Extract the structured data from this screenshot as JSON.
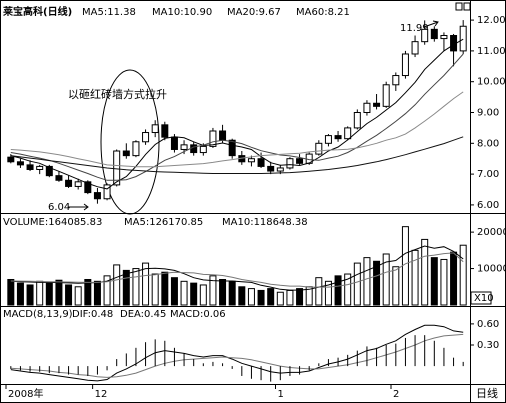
{
  "chart_data": [
    {
      "type": "candlestick",
      "title": "莱宝高科(日线)",
      "open": [
        7.55,
        7.4,
        7.3,
        7.15,
        7.25,
        6.95,
        6.8,
        6.6,
        6.75,
        6.4,
        6.2,
        6.65,
        7.75,
        7.6,
        8.05,
        8.35,
        8.6,
        8.2,
        7.8,
        7.95,
        7.7,
        7.9,
        8.4,
        8.1,
        7.6,
        7.4,
        7.5,
        7.25,
        7.1,
        7.2,
        7.5,
        7.35,
        7.65,
        8.0,
        8.25,
        8.15,
        8.5,
        9.0,
        9.3,
        9.2,
        9.9,
        10.2,
        10.9,
        11.3,
        11.7,
        11.4,
        11.5,
        11.0
      ],
      "high": [
        7.65,
        7.5,
        7.45,
        7.3,
        7.3,
        7.1,
        6.95,
        6.85,
        6.8,
        6.55,
        6.7,
        7.8,
        8.0,
        8.1,
        8.45,
        8.75,
        8.7,
        8.3,
        8.1,
        8.05,
        8.0,
        8.5,
        8.6,
        8.15,
        7.75,
        7.6,
        7.7,
        7.4,
        7.3,
        7.55,
        7.65,
        7.7,
        8.1,
        8.3,
        8.4,
        8.55,
        9.1,
        9.4,
        9.6,
        10.0,
        10.3,
        11.0,
        11.5,
        11.99,
        11.8,
        11.6,
        11.55,
        12.0
      ],
      "low": [
        7.35,
        7.2,
        7.1,
        7.0,
        6.9,
        6.75,
        6.55,
        6.5,
        6.35,
        6.04,
        6.15,
        6.6,
        7.5,
        7.55,
        7.95,
        8.2,
        8.1,
        7.7,
        7.65,
        7.6,
        7.6,
        7.85,
        8.0,
        7.5,
        7.3,
        7.25,
        7.2,
        7.0,
        7.0,
        7.15,
        7.3,
        7.3,
        7.6,
        7.9,
        8.05,
        8.1,
        8.45,
        8.9,
        9.1,
        9.15,
        9.7,
        10.1,
        10.8,
        11.2,
        11.3,
        11.0,
        10.5,
        10.9
      ],
      "close": [
        7.4,
        7.3,
        7.15,
        7.25,
        6.95,
        6.8,
        6.6,
        6.75,
        6.4,
        6.2,
        6.65,
        7.75,
        7.6,
        8.05,
        8.35,
        8.6,
        8.2,
        7.8,
        7.95,
        7.7,
        7.9,
        8.4,
        8.1,
        7.6,
        7.4,
        7.5,
        7.25,
        7.1,
        7.2,
        7.5,
        7.35,
        7.65,
        8.0,
        8.25,
        8.15,
        8.5,
        9.0,
        9.3,
        9.2,
        9.9,
        10.2,
        10.9,
        11.3,
        11.7,
        11.4,
        11.5,
        11.0,
        11.8
      ],
      "color": "#000000",
      "series": [
        {
          "name": "MA5:11.38",
          "color": "#000000",
          "values": [
            7.6,
            7.52,
            7.42,
            7.35,
            7.21,
            7.09,
            6.96,
            6.83,
            6.7,
            6.59,
            6.52,
            6.75,
            6.92,
            7.25,
            7.64,
            7.96,
            8.16,
            8.21,
            8.18,
            8.05,
            7.93,
            7.95,
            8.01,
            7.94,
            7.88,
            7.8,
            7.57,
            7.37,
            7.29,
            7.31,
            7.28,
            7.36,
            7.54,
            7.75,
            7.88,
            8.11,
            8.38,
            8.64,
            8.84,
            9.08,
            9.32,
            9.64,
            9.98,
            10.4,
            10.7,
            11.0,
            11.2,
            11.38
          ]
        },
        {
          "name": "MA10:10.90",
          "color": "#444444",
          "values": [
            7.7,
            7.65,
            7.58,
            7.52,
            7.45,
            7.35,
            7.24,
            7.13,
            7.02,
            6.9,
            6.8,
            6.8,
            6.82,
            6.92,
            7.08,
            7.26,
            7.45,
            7.57,
            7.73,
            7.88,
            7.94,
            8.05,
            8.1,
            8.06,
            7.99,
            7.87,
            7.76,
            7.69,
            7.62,
            7.59,
            7.54,
            7.47,
            7.45,
            7.52,
            7.58,
            7.7,
            7.87,
            8.07,
            8.26,
            8.48,
            8.71,
            8.96,
            9.25,
            9.59,
            9.9,
            10.2,
            10.55,
            10.9
          ]
        },
        {
          "name": "MA20:9.67",
          "color": "#8a8a8a",
          "values": [
            7.8,
            7.78,
            7.75,
            7.72,
            7.68,
            7.63,
            7.57,
            7.5,
            7.44,
            7.37,
            7.3,
            7.28,
            7.26,
            7.24,
            7.24,
            7.24,
            7.26,
            7.28,
            7.3,
            7.32,
            7.34,
            7.38,
            7.43,
            7.47,
            7.52,
            7.56,
            7.6,
            7.62,
            7.64,
            7.66,
            7.68,
            7.72,
            7.75,
            7.78,
            7.79,
            7.81,
            7.85,
            7.92,
            8.0,
            8.1,
            8.18,
            8.3,
            8.5,
            8.72,
            8.95,
            9.2,
            9.45,
            9.67
          ]
        },
        {
          "name": "MA60:8.21",
          "color": "#111111",
          "values": [
            7.6,
            7.56,
            7.52,
            7.48,
            7.44,
            7.4,
            7.36,
            7.32,
            7.28,
            7.24,
            7.2,
            7.17,
            7.14,
            7.12,
            7.1,
            7.08,
            7.07,
            7.06,
            7.05,
            7.04,
            7.03,
            7.02,
            7.02,
            7.02,
            7.02,
            7.02,
            7.02,
            7.03,
            7.04,
            7.05,
            7.07,
            7.09,
            7.12,
            7.15,
            7.19,
            7.23,
            7.28,
            7.34,
            7.4,
            7.47,
            7.55,
            7.63,
            7.72,
            7.81,
            7.9,
            7.99,
            8.1,
            8.21
          ]
        }
      ],
      "ylim": [
        5.77,
        12.49
      ],
      "yticks": [
        {
          "value": 6,
          "label": "6.00"
        },
        {
          "value": 7,
          "label": "7.00"
        },
        {
          "value": 8,
          "label": "8.00"
        },
        {
          "value": 9,
          "label": "9.00"
        },
        {
          "value": 10,
          "label": "10.00"
        },
        {
          "value": 11,
          "label": "11.00"
        },
        {
          "value": 12,
          "label": "12.00"
        }
      ],
      "annotations": [
        "以砸红砖墙方式拉升",
        "6.04",
        "11.99"
      ]
    },
    {
      "type": "bar",
      "series": [
        {
          "name": "VOLUME:164085.83",
          "color": "#000000",
          "style": "bar",
          "values": [
            7000,
            6000,
            5500,
            6500,
            6000,
            6800,
            5500,
            5000,
            7000,
            6500,
            8000,
            11000,
            9500,
            10000,
            11500,
            8500,
            9000,
            7500,
            6500,
            6000,
            5500,
            8000,
            7000,
            6500,
            5000,
            4500,
            4000,
            4500,
            3500,
            4000,
            4500,
            5000,
            7500,
            6500,
            8000,
            8500,
            11500,
            13000,
            12000,
            14000,
            10500,
            21500,
            15000,
            18000,
            13000,
            12500,
            14500,
            16408.583
          ]
        },
        {
          "name": "MA5:126170.85",
          "color": "#000000",
          "style": "line",
          "values": [
            6500,
            6400,
            6300,
            6200,
            6200,
            6160,
            6060,
            5960,
            6060,
            6160,
            6560,
            7600,
            8600,
            9200,
            10000,
            10100,
            9900,
            9500,
            8600,
            7500,
            6900,
            6700,
            6600,
            6600,
            6400,
            6200,
            5400,
            4900,
            4300,
            4100,
            4100,
            4300,
            4900,
            5500,
            6300,
            7100,
            8400,
            9500,
            10600,
            11800,
            12200,
            14200,
            15200,
            16200,
            15600,
            16000,
            14700,
            12617.085
          ]
        },
        {
          "name": "MA10:118648.38",
          "color": "#777777",
          "style": "line",
          "values": [
            6600,
            6550,
            6500,
            6450,
            6400,
            6350,
            6300,
            6250,
            6200,
            6200,
            6400,
            6900,
            7400,
            7700,
            8100,
            8300,
            8700,
            9000,
            8900,
            8800,
            8400,
            8300,
            8100,
            7600,
            7000,
            6600,
            6200,
            5700,
            5400,
            5200,
            5200,
            4900,
            4900,
            4900,
            5200,
            5600,
            6300,
            7200,
            8000,
            9000,
            9600,
            11300,
            12300,
            13400,
            13700,
            14100,
            14300,
            11864.838
          ]
        }
      ],
      "ylim": [
        0,
        24700
      ],
      "yticks": [
        10000,
        20000
      ],
      "unit_label": "X10"
    },
    {
      "type": "bar",
      "title": "MACD(8,13,9)",
      "categories": [
        "2008年",
        null,
        null,
        null,
        null,
        null,
        null,
        null,
        null,
        "12",
        null,
        null,
        null,
        null,
        null,
        null,
        null,
        null,
        null,
        null,
        null,
        null,
        null,
        null,
        null,
        null,
        null,
        null,
        "1",
        null,
        null,
        null,
        null,
        null,
        null,
        null,
        null,
        null,
        null,
        null,
        "2",
        null,
        null,
        null,
        null,
        null,
        null,
        null
      ],
      "series": [
        {
          "name": "DIF:0.48",
          "color": "#000000",
          "style": "line",
          "values": [
            -0.05,
            -0.07,
            -0.09,
            -0.1,
            -0.12,
            -0.14,
            -0.16,
            -0.18,
            -0.2,
            -0.21,
            -0.19,
            -0.1,
            -0.04,
            0.03,
            0.12,
            0.19,
            0.22,
            0.2,
            0.18,
            0.15,
            0.13,
            0.15,
            0.15,
            0.1,
            0.04,
            0.0,
            -0.04,
            -0.08,
            -0.1,
            -0.09,
            -0.09,
            -0.07,
            -0.02,
            0.03,
            0.06,
            0.1,
            0.16,
            0.22,
            0.25,
            0.31,
            0.36,
            0.45,
            0.52,
            0.58,
            0.58,
            0.56,
            0.5,
            0.48
          ]
        },
        {
          "name": "DEA:0.45",
          "color": "#777777",
          "style": "line",
          "values": [
            -0.03,
            -0.04,
            -0.05,
            -0.06,
            -0.07,
            -0.09,
            -0.1,
            -0.12,
            -0.13,
            -0.15,
            -0.16,
            -0.15,
            -0.13,
            -0.1,
            -0.05,
            0.0,
            0.04,
            0.07,
            0.09,
            0.1,
            0.11,
            0.12,
            0.13,
            0.12,
            0.11,
            0.09,
            0.06,
            0.03,
            0.0,
            -0.02,
            -0.03,
            -0.04,
            -0.04,
            -0.02,
            0.0,
            0.02,
            0.05,
            0.08,
            0.12,
            0.16,
            0.2,
            0.25,
            0.3,
            0.36,
            0.4,
            0.43,
            0.44,
            0.45
          ]
        },
        {
          "name": "MACD:0.06",
          "color": "#000000",
          "style": "stick",
          "values": [
            -0.04,
            -0.06,
            -0.08,
            -0.08,
            -0.1,
            -0.1,
            -0.12,
            -0.12,
            -0.14,
            -0.12,
            -0.06,
            0.1,
            0.18,
            0.26,
            0.34,
            0.38,
            0.36,
            0.26,
            0.18,
            0.1,
            0.04,
            0.06,
            0.04,
            -0.04,
            -0.14,
            -0.18,
            -0.2,
            -0.22,
            -0.2,
            -0.14,
            -0.12,
            -0.06,
            0.04,
            0.1,
            0.12,
            0.16,
            0.22,
            0.28,
            0.26,
            0.3,
            0.32,
            0.4,
            0.44,
            0.44,
            0.36,
            0.26,
            0.12,
            0.06
          ]
        }
      ],
      "ylim": [
        -0.24,
        0.84
      ],
      "yticks": [
        {
          "value": 0.3,
          "label": "0.30"
        },
        {
          "value": 0.6,
          "label": "0.60"
        }
      ],
      "period_label": "日线"
    }
  ]
}
